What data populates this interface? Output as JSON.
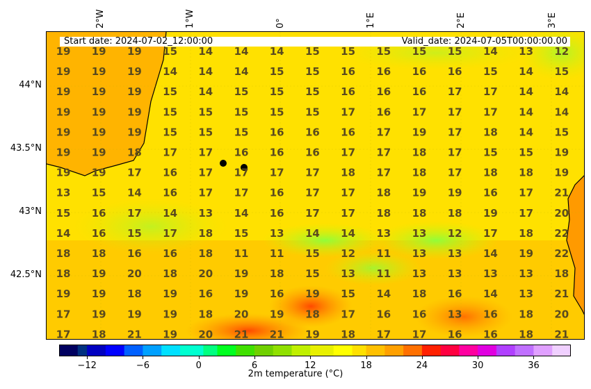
{
  "header": {
    "start_date": "Start date: 2024-07-02_12:00:00",
    "valid_date": "Valid_date: 2024-07-05T00:00:00.00"
  },
  "axes": {
    "lon_labels": [
      "2°W",
      "1°W",
      "0°",
      "1°E",
      "2°E",
      "3°E"
    ],
    "lat_labels": [
      "44°N",
      "43.5°N",
      "43°N",
      "42.5°N"
    ]
  },
  "colorbar": {
    "label": "2m temperature ($^\\circ$C)",
    "label_display": "2m temperature (°C)",
    "min": -15,
    "max": 40,
    "ticks": [
      "-12",
      "-6",
      "0",
      "6",
      "12",
      "18",
      "24",
      "30",
      "36"
    ],
    "tick_values": [
      -12,
      -6,
      0,
      6,
      12,
      18,
      24,
      30,
      36
    ]
  },
  "chart_data": {
    "type": "heatmap",
    "variable": "2m temperature (°C)",
    "grid_values": [
      [
        19,
        19,
        19,
        15,
        14,
        14,
        14,
        15,
        15,
        15,
        15,
        15,
        14,
        13,
        12
      ],
      [
        19,
        19,
        19,
        14,
        14,
        14,
        15,
        15,
        16,
        16,
        16,
        16,
        15,
        14,
        15
      ],
      [
        19,
        19,
        19,
        15,
        14,
        15,
        15,
        15,
        16,
        16,
        16,
        17,
        17,
        14,
        14
      ],
      [
        19,
        19,
        19,
        15,
        15,
        15,
        15,
        15,
        17,
        16,
        17,
        17,
        17,
        14,
        14
      ],
      [
        19,
        19,
        19,
        15,
        15,
        15,
        16,
        16,
        16,
        17,
        19,
        17,
        18,
        14,
        15
      ],
      [
        19,
        19,
        18,
        17,
        17,
        16,
        16,
        16,
        17,
        17,
        18,
        17,
        15,
        15,
        19
      ],
      [
        19,
        19,
        17,
        16,
        17,
        17,
        17,
        17,
        18,
        17,
        18,
        17,
        18,
        18,
        19
      ],
      [
        13,
        15,
        14,
        16,
        17,
        17,
        16,
        17,
        17,
        18,
        19,
        19,
        16,
        17,
        21
      ],
      [
        15,
        16,
        17,
        14,
        13,
        14,
        16,
        17,
        17,
        18,
        18,
        18,
        19,
        17,
        20
      ],
      [
        14,
        16,
        15,
        17,
        18,
        15,
        13,
        14,
        14,
        13,
        13,
        12,
        17,
        18,
        22
      ],
      [
        18,
        18,
        16,
        16,
        18,
        11,
        11,
        15,
        12,
        11,
        13,
        13,
        14,
        19,
        22
      ],
      [
        18,
        19,
        20,
        18,
        20,
        19,
        18,
        15,
        13,
        11,
        13,
        13,
        13,
        13,
        18
      ],
      [
        19,
        19,
        18,
        19,
        16,
        19,
        16,
        19,
        15,
        14,
        18,
        16,
        14,
        13,
        21
      ],
      [
        17,
        19,
        19,
        19,
        18,
        20,
        19,
        18,
        17,
        16,
        16,
        13,
        16,
        18,
        20
      ],
      [
        17,
        18,
        21,
        19,
        20,
        21,
        21,
        19,
        18,
        17,
        17,
        16,
        16,
        18,
        21
      ]
    ],
    "markers": 2
  },
  "colors": {
    "coast": "#000000",
    "label_text": "#5a4a1e"
  }
}
